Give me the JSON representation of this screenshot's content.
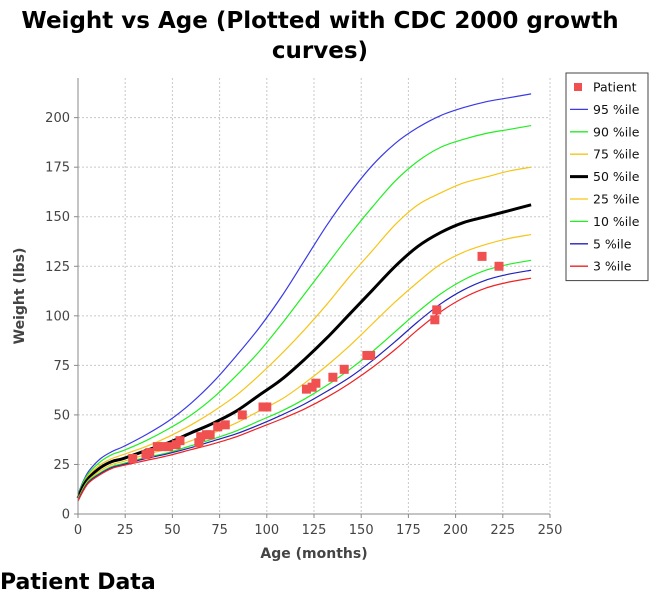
{
  "footer_text": "Patient Data",
  "chart_data": {
    "type": "line",
    "title": "Weight vs Age (Plotted with CDC 2000 growth curves)",
    "xlabel": "Age (months)",
    "ylabel": "Weight (lbs)",
    "xlim": [
      0,
      250
    ],
    "ylim": [
      0,
      220
    ],
    "xticks": [
      0,
      25,
      50,
      75,
      100,
      125,
      150,
      175,
      200,
      225,
      250
    ],
    "yticks": [
      0,
      25,
      50,
      75,
      100,
      125,
      150,
      175,
      200
    ],
    "grid": true,
    "legend_position": "top-right",
    "percentile_x": [
      0,
      3,
      6,
      12,
      18,
      24,
      36,
      48,
      60,
      72,
      84,
      96,
      108,
      120,
      132,
      144,
      156,
      168,
      180,
      192,
      204,
      216,
      228,
      240
    ],
    "series": [
      {
        "name": "Patient",
        "kind": "scatter",
        "color": "#f05050",
        "points": [
          [
            29,
            28
          ],
          [
            36,
            30
          ],
          [
            38,
            31
          ],
          [
            42,
            34
          ],
          [
            45,
            34
          ],
          [
            48,
            34
          ],
          [
            52,
            35
          ],
          [
            54,
            37
          ],
          [
            64,
            36
          ],
          [
            65,
            39
          ],
          [
            68,
            40
          ],
          [
            70,
            40
          ],
          [
            74,
            44
          ],
          [
            78,
            45
          ],
          [
            87,
            50
          ],
          [
            98,
            54
          ],
          [
            100,
            54
          ],
          [
            121,
            63
          ],
          [
            124,
            64
          ],
          [
            126,
            66
          ],
          [
            135,
            69
          ],
          [
            141,
            73
          ],
          [
            153,
            80
          ],
          [
            155,
            80
          ],
          [
            189,
            98
          ],
          [
            190,
            103
          ],
          [
            214,
            130
          ],
          [
            223,
            125
          ]
        ]
      },
      {
        "name": "95 %ile",
        "kind": "line",
        "color": "#3a3ae6",
        "width": 1.2,
        "values": [
          10,
          17,
          22,
          28,
          31.5,
          34,
          40,
          47,
          56,
          67,
          80,
          94,
          110,
          128,
          146,
          162,
          176,
          187,
          195,
          201,
          205,
          208,
          210,
          212
        ]
      },
      {
        "name": "90 %ile",
        "kind": "line",
        "color": "#22ee22",
        "width": 1.2,
        "values": [
          9.5,
          16.5,
          21,
          26.5,
          30,
          32,
          37,
          43,
          50,
          59,
          70,
          82,
          96,
          111,
          126,
          141,
          155,
          168,
          178,
          185,
          189,
          192,
          194,
          196
        ]
      },
      {
        "name": "75 %ile",
        "kind": "line",
        "color": "#f5c518",
        "width": 1.2,
        "values": [
          9,
          15.5,
          20,
          25,
          28,
          30,
          34,
          39,
          45,
          52,
          60,
          70,
          81,
          93,
          106,
          120,
          133,
          146,
          156,
          162,
          167,
          170,
          173,
          175
        ]
      },
      {
        "name": "50 %ile",
        "kind": "line",
        "color": "#000000",
        "width": 3,
        "values": [
          8,
          14.5,
          18.5,
          23.5,
          26.5,
          28,
          32,
          36,
          41,
          46,
          52,
          60,
          68,
          78,
          89,
          101,
          113,
          125,
          135,
          142,
          147,
          150,
          153,
          156
        ]
      },
      {
        "name": "25 %ile",
        "kind": "line",
        "color": "#f5c518",
        "width": 1.2,
        "values": [
          7.5,
          13.5,
          17.5,
          22,
          25,
          26.5,
          30,
          33,
          37,
          41,
          46,
          52,
          58,
          66,
          75,
          85,
          96,
          107,
          117,
          126,
          132,
          136,
          139,
          141
        ]
      },
      {
        "name": "10 %ile",
        "kind": "line",
        "color": "#22ee22",
        "width": 1.2,
        "values": [
          7,
          13,
          17,
          21,
          24,
          25.5,
          28.5,
          31,
          34.5,
          38,
          42,
          47,
          52,
          58,
          65,
          73,
          82,
          92,
          102,
          111,
          118,
          123,
          126,
          128
        ]
      },
      {
        "name": "5 %ile",
        "kind": "line",
        "color": "#2222bb",
        "width": 1.2,
        "values": [
          6.8,
          12.5,
          16.5,
          20.5,
          23.5,
          25,
          28,
          30.5,
          33.5,
          37,
          40.5,
          45,
          50,
          55.5,
          62,
          69,
          77.5,
          87,
          97,
          106,
          113,
          118,
          121,
          123
        ]
      },
      {
        "name": "3 %ile",
        "kind": "line",
        "color": "#ee2222",
        "width": 1.2,
        "values": [
          6.5,
          12,
          16,
          20,
          23,
          24.5,
          27,
          29.5,
          32.5,
          35.5,
          39,
          43.5,
          48,
          53,
          59,
          66,
          74,
          83,
          93,
          102,
          109,
          114,
          117,
          119
        ]
      }
    ]
  }
}
